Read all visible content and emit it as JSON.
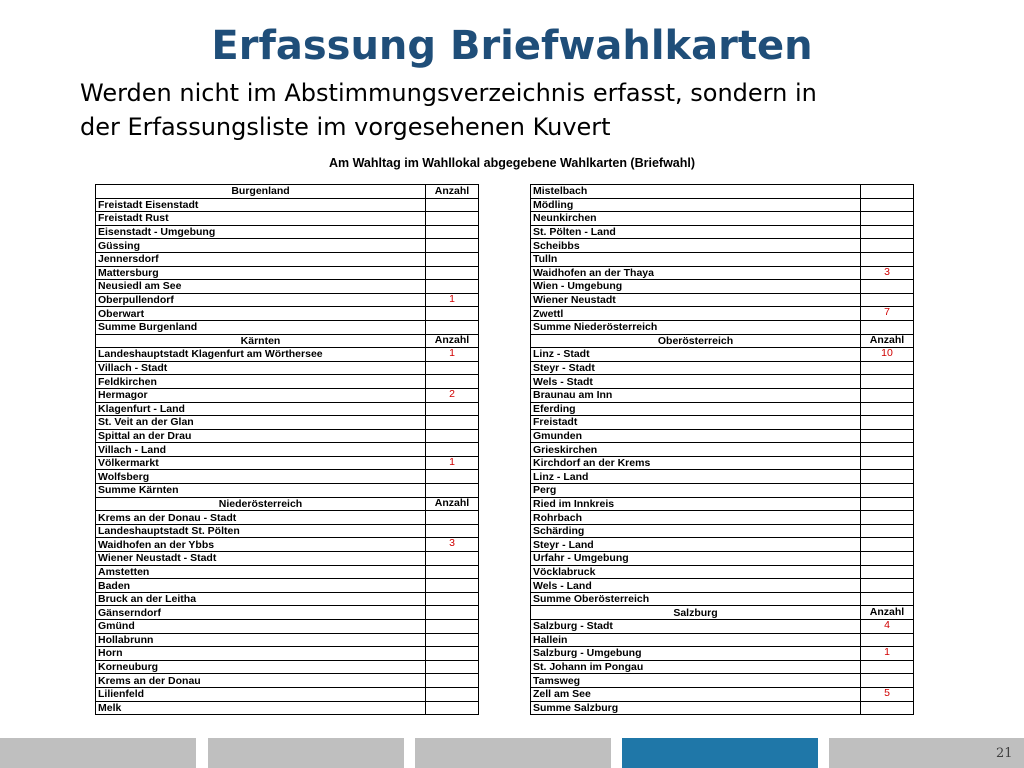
{
  "slide": {
    "title": "Erfassung Briefwahlkarten",
    "subtitle_lines": [
      "Werden nicht im Abstimmungsverzeichnis erfasst, sondern in",
      "der Erfassungsliste im vorgesehenen Kuvert"
    ],
    "form_caption": "Am Wahltag im Wahllokal abgegebene Wahlkarten (Briefwahl)",
    "page_number": "21"
  },
  "left_rows": [
    {
      "label": "Burgenland",
      "count": "Anzahl",
      "header": true
    },
    {
      "label": "Freistadt Eisenstadt",
      "count": ""
    },
    {
      "label": "Freistadt Rust",
      "count": ""
    },
    {
      "label": "Eisenstadt - Umgebung",
      "count": ""
    },
    {
      "label": "Güssing",
      "count": ""
    },
    {
      "label": "Jennersdorf",
      "count": ""
    },
    {
      "label": "Mattersburg",
      "count": ""
    },
    {
      "label": "Neusiedl am See",
      "count": ""
    },
    {
      "label": "Oberpullendorf",
      "count": "1"
    },
    {
      "label": "Oberwart",
      "count": ""
    },
    {
      "label": "Summe Burgenland",
      "count": ""
    },
    {
      "label": "Kärnten",
      "count": "Anzahl",
      "header": true
    },
    {
      "label": "Landeshauptstadt Klagenfurt am Wörthersee",
      "count": "1"
    },
    {
      "label": "Villach - Stadt",
      "count": ""
    },
    {
      "label": "Feldkirchen",
      "count": ""
    },
    {
      "label": "Hermagor",
      "count": "2"
    },
    {
      "label": "Klagenfurt - Land",
      "count": ""
    },
    {
      "label": "St. Veit an der Glan",
      "count": ""
    },
    {
      "label": "Spittal an der Drau",
      "count": ""
    },
    {
      "label": "Villach - Land",
      "count": ""
    },
    {
      "label": "Völkermarkt",
      "count": "1"
    },
    {
      "label": "Wolfsberg",
      "count": ""
    },
    {
      "label": "Summe Kärnten",
      "count": ""
    },
    {
      "label": "Niederösterreich",
      "count": "Anzahl",
      "header": true
    },
    {
      "label": "Krems an der Donau - Stadt",
      "count": ""
    },
    {
      "label": "Landeshauptstadt St. Pölten",
      "count": ""
    },
    {
      "label": "Waidhofen an der Ybbs",
      "count": "3"
    },
    {
      "label": "Wiener Neustadt - Stadt",
      "count": ""
    },
    {
      "label": "Amstetten",
      "count": ""
    },
    {
      "label": "Baden",
      "count": ""
    },
    {
      "label": "Bruck an der Leitha",
      "count": ""
    },
    {
      "label": "Gänserndorf",
      "count": ""
    },
    {
      "label": "Gmünd",
      "count": ""
    },
    {
      "label": "Hollabrunn",
      "count": ""
    },
    {
      "label": "Horn",
      "count": ""
    },
    {
      "label": "Korneuburg",
      "count": ""
    },
    {
      "label": "Krems an der Donau",
      "count": ""
    },
    {
      "label": "Lilienfeld",
      "count": ""
    },
    {
      "label": "Melk",
      "count": ""
    }
  ],
  "right_rows": [
    {
      "label": "Mistelbach",
      "count": ""
    },
    {
      "label": "Mödling",
      "count": ""
    },
    {
      "label": "Neunkirchen",
      "count": ""
    },
    {
      "label": "St. Pölten - Land",
      "count": ""
    },
    {
      "label": "Scheibbs",
      "count": ""
    },
    {
      "label": "Tulln",
      "count": ""
    },
    {
      "label": "Waidhofen an der Thaya",
      "count": "3"
    },
    {
      "label": "Wien - Umgebung",
      "count": ""
    },
    {
      "label": "Wiener Neustadt",
      "count": ""
    },
    {
      "label": "Zwettl",
      "count": "7"
    },
    {
      "label": "Summe Niederösterreich",
      "count": ""
    },
    {
      "label": "Oberösterreich",
      "count": "Anzahl",
      "header": true
    },
    {
      "label": "Linz - Stadt",
      "count": "10"
    },
    {
      "label": "Steyr - Stadt",
      "count": ""
    },
    {
      "label": "Wels - Stadt",
      "count": ""
    },
    {
      "label": "Braunau am Inn",
      "count": ""
    },
    {
      "label": "Eferding",
      "count": ""
    },
    {
      "label": "Freistadt",
      "count": ""
    },
    {
      "label": "Gmunden",
      "count": ""
    },
    {
      "label": "Grieskirchen",
      "count": ""
    },
    {
      "label": "Kirchdorf an der Krems",
      "count": ""
    },
    {
      "label": "Linz - Land",
      "count": ""
    },
    {
      "label": "Perg",
      "count": ""
    },
    {
      "label": "Ried im Innkreis",
      "count": ""
    },
    {
      "label": "Rohrbach",
      "count": ""
    },
    {
      "label": "Schärding",
      "count": ""
    },
    {
      "label": "Steyr - Land",
      "count": ""
    },
    {
      "label": "Urfahr - Umgebung",
      "count": ""
    },
    {
      "label": "Vöcklabruck",
      "count": ""
    },
    {
      "label": "Wels - Land",
      "count": ""
    },
    {
      "label": "Summe Oberösterreich",
      "count": ""
    },
    {
      "label": "Salzburg",
      "count": "Anzahl",
      "header": true
    },
    {
      "label": "Salzburg - Stadt",
      "count": "4"
    },
    {
      "label": "Hallein",
      "count": ""
    },
    {
      "label": "Salzburg - Umgebung",
      "count": "1"
    },
    {
      "label": "St. Johann im Pongau",
      "count": ""
    },
    {
      "label": "Tamsweg",
      "count": ""
    },
    {
      "label": "Zell am See",
      "count": "5"
    },
    {
      "label": "Summe Salzburg",
      "count": ""
    }
  ],
  "colors": {
    "title": "#1f4e79",
    "handwritten_count": "#d00000",
    "footer_bar": "#bfbfbf",
    "footer_bar_active": "#1f77a8"
  }
}
